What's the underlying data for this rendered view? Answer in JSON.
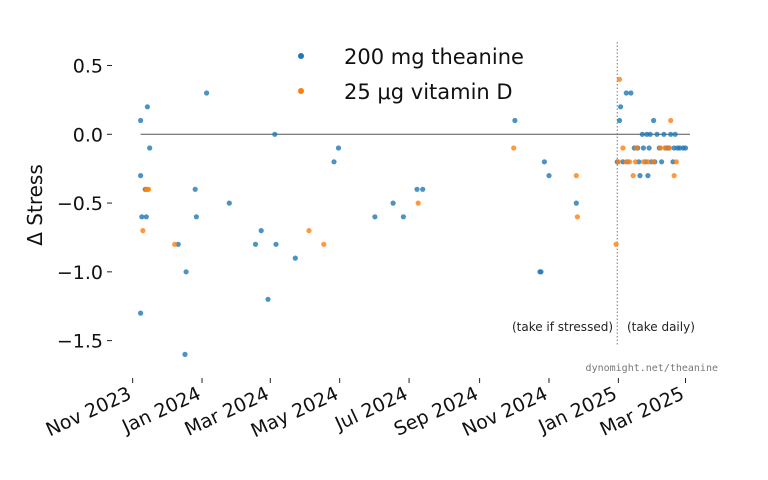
{
  "chart_data": {
    "type": "scatter",
    "title": "",
    "xlabel": "",
    "ylabel": "Δ Stress",
    "ylim": [
      -1.75,
      0.7
    ],
    "yticks": [
      0.5,
      0.0,
      -0.5,
      -1.0,
      -1.5
    ],
    "ytick_labels": [
      "0.5",
      "0.0",
      "−0.5",
      "−1.0",
      "−1.5"
    ],
    "x_domain": [
      "2023-10-20",
      "2025-03-12"
    ],
    "xticks": [
      "2023-11-01",
      "2024-01-01",
      "2024-03-01",
      "2024-05-01",
      "2024-07-01",
      "2024-09-01",
      "2024-11-01",
      "2025-01-01",
      "2025-03-01"
    ],
    "xtick_labels": [
      "Nov 2023",
      "Jan 2024",
      "Mar 2024",
      "May 2024",
      "Jul 2024",
      "Sep 2024",
      "Nov 2024",
      "Jan 2025",
      "Mar 2025"
    ],
    "reference_line_y": 0.0,
    "divider_date": "2024-12-31",
    "annotations": [
      "(take if stressed)",
      "(take daily)"
    ],
    "watermark": "dynomight.net/theanine",
    "colors": {
      "theanine": "#1f77b4",
      "vitaminD": "#ff7f0e",
      "zero_line": "#555555"
    },
    "series": [
      {
        "name": "200 mg theanine",
        "key": "theanine",
        "points": [
          [
            "2023-11-08",
            0.1
          ],
          [
            "2023-11-08",
            -0.3
          ],
          [
            "2023-11-08",
            -1.3
          ],
          [
            "2023-11-09",
            -0.6
          ],
          [
            "2023-11-12",
            -0.4
          ],
          [
            "2023-11-13",
            -0.6
          ],
          [
            "2023-11-14",
            0.2
          ],
          [
            "2023-11-16",
            -0.1
          ],
          [
            "2023-12-11",
            -0.8
          ],
          [
            "2023-12-17",
            -1.6
          ],
          [
            "2023-12-18",
            -1.0
          ],
          [
            "2023-12-26",
            -0.4
          ],
          [
            "2023-12-27",
            -0.6
          ],
          [
            "2024-01-05",
            0.3
          ],
          [
            "2024-01-25",
            -0.5
          ],
          [
            "2024-02-17",
            -0.8
          ],
          [
            "2024-02-22",
            -0.7
          ],
          [
            "2024-02-28",
            -1.2
          ],
          [
            "2024-03-05",
            0.0
          ],
          [
            "2024-03-06",
            -0.8
          ],
          [
            "2024-03-23",
            -0.9
          ],
          [
            "2024-04-26",
            -0.2
          ],
          [
            "2024-04-30",
            -0.1
          ],
          [
            "2024-06-01",
            -0.6
          ],
          [
            "2024-06-17",
            -0.5
          ],
          [
            "2024-06-26",
            -0.6
          ],
          [
            "2024-07-08",
            -0.4
          ],
          [
            "2024-07-13",
            -0.4
          ],
          [
            "2024-10-02",
            0.1
          ],
          [
            "2024-10-24",
            -1.0
          ],
          [
            "2024-10-25",
            -1.0
          ],
          [
            "2024-10-28",
            -0.2
          ],
          [
            "2024-11-01",
            -0.3
          ],
          [
            "2024-11-25",
            -0.5
          ],
          [
            "2024-12-31",
            -0.2
          ],
          [
            "2025-01-02",
            0.1
          ],
          [
            "2025-01-03",
            0.2
          ],
          [
            "2025-01-05",
            -0.2
          ],
          [
            "2025-01-08",
            0.3
          ],
          [
            "2025-01-09",
            -0.2
          ],
          [
            "2025-01-12",
            0.3
          ],
          [
            "2025-01-15",
            -0.1
          ],
          [
            "2025-01-18",
            -0.1
          ],
          [
            "2025-01-19",
            -0.2
          ],
          [
            "2025-01-20",
            -0.3
          ],
          [
            "2025-01-22",
            0.0
          ],
          [
            "2025-01-23",
            -0.1
          ],
          [
            "2025-01-25",
            -0.2
          ],
          [
            "2025-01-26",
            0.0
          ],
          [
            "2025-01-27",
            -0.3
          ],
          [
            "2025-01-28",
            -0.1
          ],
          [
            "2025-01-29",
            0.0
          ],
          [
            "2025-01-30",
            -0.2
          ],
          [
            "2025-02-01",
            0.1
          ],
          [
            "2025-02-02",
            -0.2
          ],
          [
            "2025-02-04",
            0.0
          ],
          [
            "2025-02-06",
            -0.1
          ],
          [
            "2025-02-08",
            -0.2
          ],
          [
            "2025-02-10",
            0.0
          ],
          [
            "2025-02-12",
            -0.1
          ],
          [
            "2025-02-14",
            -0.1
          ],
          [
            "2025-02-16",
            0.0
          ],
          [
            "2025-02-18",
            -0.2
          ],
          [
            "2025-02-19",
            -0.1
          ],
          [
            "2025-02-20",
            0.0
          ],
          [
            "2025-02-22",
            -0.1
          ],
          [
            "2025-02-24",
            -0.1
          ],
          [
            "2025-02-27",
            -0.1
          ],
          [
            "2025-03-01",
            -0.1
          ]
        ]
      },
      {
        "name": "25 μg vitamin D",
        "key": "vitaminD",
        "points": [
          [
            "2023-11-10",
            -0.7
          ],
          [
            "2023-11-13",
            -0.4
          ],
          [
            "2023-11-14",
            -0.4
          ],
          [
            "2023-11-15",
            -0.4
          ],
          [
            "2023-12-08",
            -0.8
          ],
          [
            "2024-04-04",
            -0.7
          ],
          [
            "2024-04-17",
            -0.8
          ],
          [
            "2024-07-09",
            -0.5
          ],
          [
            "2024-10-01",
            -0.1
          ],
          [
            "2024-11-25",
            -0.3
          ],
          [
            "2024-11-26",
            -0.6
          ],
          [
            "2024-12-30",
            -0.8
          ],
          [
            "2025-01-01",
            -0.2
          ],
          [
            "2025-01-02",
            0.4
          ],
          [
            "2025-01-05",
            -0.1
          ],
          [
            "2025-01-08",
            -0.2
          ],
          [
            "2025-01-11",
            -0.2
          ],
          [
            "2025-01-14",
            -0.3
          ],
          [
            "2025-01-16",
            -0.2
          ],
          [
            "2025-01-17",
            -0.1
          ],
          [
            "2025-01-23",
            -0.2
          ],
          [
            "2025-01-27",
            -0.2
          ],
          [
            "2025-02-01",
            -0.2
          ],
          [
            "2025-02-07",
            -0.1
          ],
          [
            "2025-02-11",
            -0.1
          ],
          [
            "2025-02-15",
            -0.1
          ],
          [
            "2025-02-16",
            0.1
          ],
          [
            "2025-02-19",
            -0.3
          ],
          [
            "2025-02-21",
            -0.2
          ]
        ]
      }
    ]
  }
}
